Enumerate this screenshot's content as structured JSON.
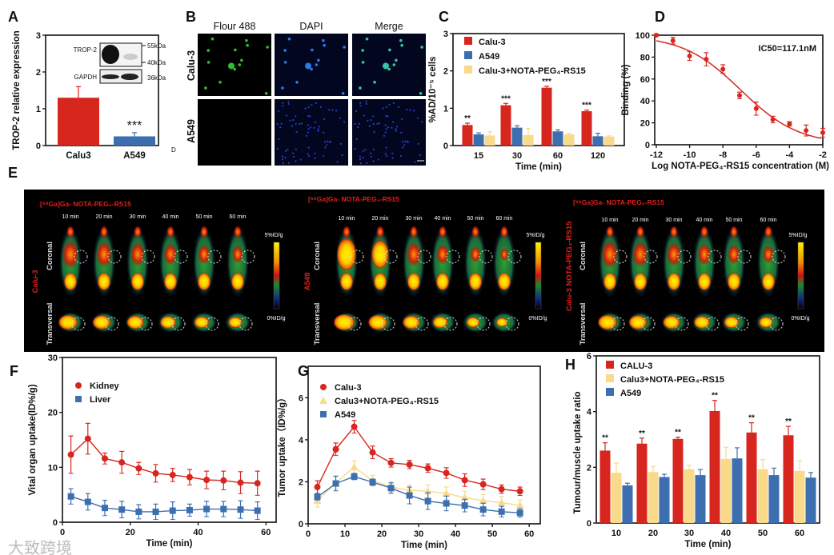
{
  "figure_labels": [
    "A",
    "B",
    "C",
    "D",
    "E",
    "F",
    "G",
    "H"
  ],
  "stray_text": "D",
  "watermark": "大致跨境",
  "panel_a_blot": {
    "bands": [
      "TROP-2",
      "GAPDH"
    ],
    "markers": [
      "55kDa",
      "40kDa",
      "36kDa"
    ]
  },
  "panel_b": {
    "columns": [
      "Flour 488",
      "DAPI",
      "Merge"
    ],
    "rows": [
      "Calu-3",
      "A549"
    ]
  },
  "panel_e": {
    "title": "[⁶⁸Ga]Ga- NOTA-PEG₄-RS15",
    "times": [
      "10 min",
      "20 min",
      "30 min",
      "40 min",
      "50 min",
      "60 min"
    ],
    "views": [
      "Coronal",
      "Transversal"
    ],
    "groups": [
      "Calu-3",
      "A549",
      "Calu-3 NOTA-PEG₄-RS15"
    ],
    "scale_max": "5%ID/g",
    "scale_min": "0%ID/g"
  },
  "colors": {
    "red": "#d7261e",
    "blue": "#3d6fb0",
    "yellow": "#f9d98a"
  },
  "chart_data": [
    {
      "panel": "A",
      "type": "bar",
      "categories": [
        "Calu3",
        "A549"
      ],
      "values": [
        1.3,
        0.25
      ],
      "errors": [
        0.3,
        0.1
      ],
      "significance": [
        "",
        "***"
      ],
      "ylabel": "TROP-2 relative expression",
      "ylim": [
        0,
        3
      ],
      "yticks": [
        0,
        1,
        2,
        3
      ],
      "colors": [
        "#d7261e",
        "#3d6fb0"
      ]
    },
    {
      "panel": "C",
      "type": "bar",
      "categories": [
        15,
        30,
        60,
        120
      ],
      "series": [
        {
          "name": "Calu-3",
          "values": [
            0.55,
            1.08,
            1.55,
            0.92
          ],
          "errors": [
            0.05,
            0.05,
            0.04,
            0.03
          ],
          "color": "#d7261e"
        },
        {
          "name": "A549",
          "values": [
            0.3,
            0.48,
            0.38,
            0.25
          ],
          "errors": [
            0.04,
            0.05,
            0.04,
            0.08
          ],
          "color": "#3d6fb0"
        },
        {
          "name": "Calu-3+NOTA-PEG₄-RS15",
          "values": [
            0.27,
            0.28,
            0.3,
            0.24
          ],
          "errors": [
            0.1,
            0.18,
            0.03,
            0.02
          ],
          "color": "#f9d98a"
        }
      ],
      "significance": [
        "**",
        "***",
        "***",
        "***"
      ],
      "xlabel": "Time (min)",
      "ylabel": "%AD/10⁻⁵ cells",
      "ylim": [
        0,
        3
      ],
      "yticks": [
        0,
        1,
        2,
        3
      ]
    },
    {
      "panel": "D",
      "type": "scatter",
      "x": [
        -12,
        -11,
        -10,
        -9,
        -8,
        -7,
        -6,
        -5,
        -4,
        -3,
        -2
      ],
      "y": [
        100,
        95,
        81,
        78,
        69,
        45,
        33,
        23,
        19,
        13,
        11
      ],
      "errors": [
        1,
        3,
        4,
        6,
        4,
        3,
        6,
        3,
        2,
        5,
        4
      ],
      "fit": {
        "label": "IC50=117.1nM",
        "log_ic50": -6.93,
        "hill": 0.25,
        "top": 100,
        "bottom": 0
      },
      "xlabel": "Log NOTA-PEG₄-RS15 concentration (M)",
      "ylabel": "Binding (%)",
      "xlim": [
        -12,
        -2
      ],
      "xticks": [
        -12,
        -10,
        -8,
        -6,
        -4,
        -2
      ],
      "ylim": [
        0,
        100
      ],
      "yticks": [
        0,
        20,
        40,
        60,
        80,
        100
      ],
      "color": "#d7261e"
    },
    {
      "panel": "F",
      "type": "line",
      "x": [
        2.5,
        7.5,
        12.5,
        17.5,
        22.5,
        27.5,
        32.5,
        37.5,
        42.5,
        47.5,
        52.5,
        57.5
      ],
      "series": [
        {
          "name": "Kidney",
          "values": [
            12.3,
            15.2,
            11.6,
            10.9,
            9.8,
            8.9,
            8.6,
            8.2,
            7.7,
            7.6,
            7.2,
            7.1
          ],
          "errors": [
            3.4,
            2.8,
            1,
            2,
            1.1,
            1.6,
            1.2,
            1.4,
            1.6,
            1.7,
            2,
            2.2
          ],
          "color": "#d7261e",
          "marker": "circle"
        },
        {
          "name": "Liver",
          "values": [
            4.7,
            3.7,
            2.6,
            2.3,
            1.9,
            1.9,
            2.1,
            2.2,
            2.4,
            2.4,
            2.3,
            2.1
          ],
          "errors": [
            1.4,
            1.5,
            1.4,
            1.5,
            1.3,
            1.4,
            1.6,
            1.1,
            1.4,
            1.4,
            1.6,
            1.6
          ],
          "color": "#3d6fb0",
          "marker": "square"
        }
      ],
      "xlabel": "Time (min)",
      "ylabel": "Vital organ uptake(ID%/g)",
      "xlim": [
        0,
        63
      ],
      "xticks": [
        0,
        20,
        40,
        60
      ],
      "ylim": [
        0,
        30
      ],
      "yticks": [
        0,
        10,
        20,
        30
      ]
    },
    {
      "panel": "G",
      "type": "line",
      "x": [
        2.5,
        7.5,
        12.5,
        17.5,
        22.5,
        27.5,
        32.5,
        37.5,
        42.5,
        47.5,
        52.5,
        57.5
      ],
      "series": [
        {
          "name": "Calu-3",
          "values": [
            1.75,
            3.55,
            4.62,
            3.4,
            2.9,
            2.82,
            2.65,
            2.42,
            2.08,
            1.88,
            1.65,
            1.55
          ],
          "errors": [
            0.3,
            0.3,
            0.3,
            0.3,
            0.2,
            0.2,
            0.2,
            0.25,
            0.3,
            0.25,
            0.2,
            0.2
          ],
          "color": "#d7261e",
          "marker": "circle"
        },
        {
          "name": "Calu3+NOTA-PEG₄-RS15",
          "values": [
            1.1,
            1.95,
            2.7,
            2.05,
            1.75,
            1.6,
            1.55,
            1.45,
            1.25,
            1.1,
            1.0,
            0.88
          ],
          "errors": [
            0.3,
            0.3,
            0.3,
            0.25,
            0.25,
            0.25,
            0.3,
            0.3,
            0.3,
            0.3,
            0.3,
            0.25
          ],
          "color": "#f9d98a",
          "marker": "triangle"
        },
        {
          "name": "A549",
          "values": [
            1.28,
            1.92,
            2.25,
            1.98,
            1.7,
            1.35,
            1.08,
            0.97,
            0.87,
            0.68,
            0.58,
            0.52
          ],
          "errors": [
            0.15,
            0.35,
            0.15,
            0.15,
            0.25,
            0.4,
            0.4,
            0.35,
            0.3,
            0.3,
            0.25,
            0.2
          ],
          "color": "#3d6fb0",
          "marker": "square"
        }
      ],
      "xlabel": "Time (min)",
      "ylabel": "Tumor uptake（ID%/g）",
      "xlim": [
        0,
        63
      ],
      "xticks": [
        0,
        10,
        20,
        30,
        40,
        50,
        60
      ],
      "ylim": [
        0,
        7.5
      ],
      "yticks": [
        0,
        2,
        4,
        6
      ]
    },
    {
      "panel": "H",
      "type": "bar",
      "categories": [
        10,
        20,
        30,
        40,
        50,
        60
      ],
      "series": [
        {
          "name": "CALU-3",
          "values": [
            2.6,
            2.85,
            3.02,
            4.02,
            3.25,
            3.15
          ],
          "errors": [
            0.28,
            0.2,
            0.06,
            0.38,
            0.35,
            0.32
          ],
          "color": "#d7261e"
        },
        {
          "name": "Calu3+NOTA-PEG₄-RS15",
          "values": [
            1.8,
            1.83,
            1.93,
            2.3,
            1.93,
            1.87
          ],
          "errors": [
            0.35,
            0.2,
            0.15,
            0.42,
            0.35,
            0.37
          ],
          "color": "#f9d98a"
        },
        {
          "name": "A549",
          "values": [
            1.35,
            1.65,
            1.72,
            2.32,
            1.72,
            1.63
          ],
          "errors": [
            0.08,
            0.1,
            0.2,
            0.38,
            0.25,
            0.18
          ],
          "color": "#3d6fb0"
        }
      ],
      "significance": [
        "**",
        "**",
        "**",
        "**",
        "**",
        "**"
      ],
      "xlabel": "Time (min)",
      "ylabel": "Tumour/muscle uptake ratio",
      "ylim": [
        0,
        6
      ],
      "yticks": [
        0,
        2,
        4,
        6
      ]
    }
  ]
}
